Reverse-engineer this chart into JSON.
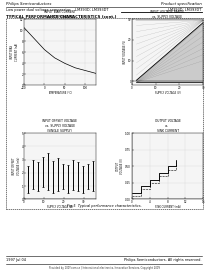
{
  "page_title_left": "Philips Semiconductors",
  "page_title_right": "Product specification",
  "part_left": "Low power dual voltage comparator    LM393D; LM393DT",
  "part_right": "LM393D; LM393DT",
  "section_title": "TYPICAL PERFORMANCE CHARACTERISTICS (cont.)",
  "fig_caption": "Fig.5  Typical performance characteristics.",
  "footer_left": "1997 Jul 04",
  "footer_right": "Philips Semiconductors. All rights reserved.",
  "footer_bottom": "Provided by 100Y.com.cn | International electronics, Innovative Services, Copyright 2009",
  "bg_color": "#ffffff"
}
